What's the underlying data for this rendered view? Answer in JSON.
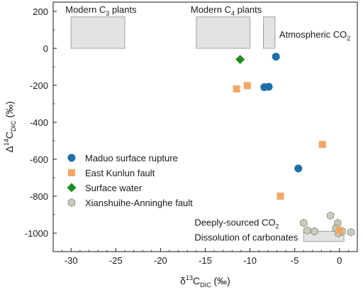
{
  "chart_data": {
    "type": "scatter",
    "xlabel": {
      "main": "δ",
      "sup": "13",
      "base": "C",
      "sub": "DIC",
      "unit": " (‰)"
    },
    "ylabel": {
      "main": "Δ",
      "sup": "14",
      "base": "C",
      "sub": "DIC",
      "unit": " (‰)"
    },
    "xlim": [
      -32,
      2
    ],
    "ylim": [
      -1100,
      250
    ],
    "xticks": [
      -30,
      -25,
      -20,
      -15,
      -10,
      -5,
      0
    ],
    "yticks": [
      200,
      0,
      -200,
      -400,
      -600,
      -800,
      -1000
    ],
    "grid": false,
    "legend_position": "bottom-left",
    "series": [
      {
        "name": "Maduo surface rupture",
        "marker": "circle",
        "color": "#1f6fa8",
        "points": [
          [
            -7.1,
            -45
          ],
          [
            -8.4,
            -210
          ],
          [
            -7.9,
            -208
          ],
          [
            -4.6,
            -650
          ]
        ]
      },
      {
        "name": "East Kunlun fault",
        "marker": "square",
        "color": "#f2a766",
        "points": [
          [
            -11.5,
            -220
          ],
          [
            -10.3,
            -202
          ],
          [
            -1.9,
            -520
          ],
          [
            -6.6,
            -800
          ],
          [
            0.0,
            -985
          ]
        ]
      },
      {
        "name": "Surface water",
        "marker": "diamond",
        "color": "#1e8c1e",
        "points": [
          [
            -11.1,
            -60
          ]
        ]
      },
      {
        "name": "Xianshuihe-Anninghe fault",
        "marker": "hexagon",
        "color": "#c9cabb",
        "points": [
          [
            -4.0,
            -945
          ],
          [
            -1.0,
            -905
          ],
          [
            -0.2,
            -945
          ],
          [
            -3.6,
            -985
          ],
          [
            -2.8,
            -990
          ],
          [
            -0.4,
            -975
          ],
          [
            -0.1,
            -1000
          ],
          [
            0.3,
            -990
          ],
          [
            1.3,
            -995
          ]
        ]
      }
    ],
    "regions": [
      {
        "label": {
          "pre": "Modern C",
          "sub": "3",
          "post": " plants"
        },
        "x": [
          -30,
          -24
        ],
        "y": [
          0,
          170
        ],
        "label_pos": "above"
      },
      {
        "label": {
          "pre": "Modern C",
          "sub": "4",
          "post": " plants"
        },
        "x": [
          -16,
          -10
        ],
        "y": [
          0,
          170
        ],
        "label_pos": "above"
      },
      {
        "label": {
          "pre": "Atmospheric CO",
          "sub": "2",
          "post": ""
        },
        "x": [
          -8.5,
          -7.2
        ],
        "y": [
          0,
          170
        ],
        "label_pos": "right"
      },
      {
        "label": {
          "pre": "",
          "sub": "",
          "post": ""
        },
        "x": [
          -4,
          0.5
        ],
        "y": [
          -1045,
          -990
        ],
        "label_pos": "none"
      }
    ],
    "annotations": [
      {
        "pre": "Deeply-sourced CO",
        "sub": "2",
        "post": "",
        "x": -16.2,
        "y": -960
      },
      {
        "pre": "Dissolution of carbonates",
        "sub": "",
        "post": "",
        "x": -16.2,
        "y": -1040
      }
    ]
  },
  "colors": {
    "region_fill": "#e3e3e3",
    "region_stroke": "#a0a0a0",
    "axis": "#1a1a1a",
    "marker_stroke": "#8a8a7a"
  }
}
